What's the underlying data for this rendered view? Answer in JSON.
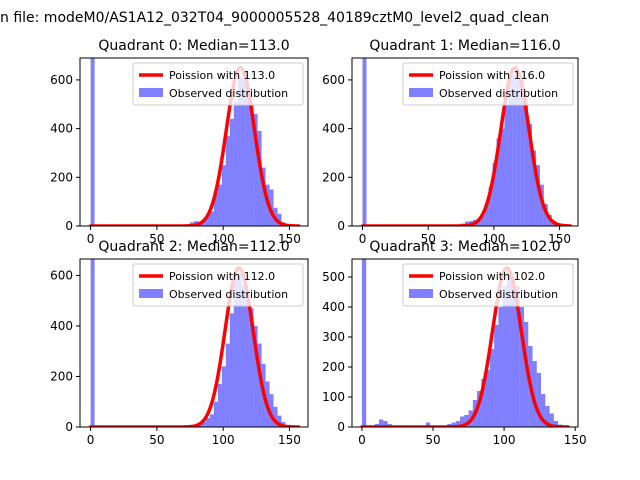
{
  "figure": {
    "suptitle": "n file: modeM0/AS1A12_032T04_9000005528_40189cztM0_level2_quad_clean"
  },
  "chart_data": [
    {
      "type": "bar",
      "title": "Quadrant 0: Median=113.0",
      "xlabel": "",
      "ylabel": "",
      "xlim": [
        -8,
        164
      ],
      "ylim": [
        0,
        690
      ],
      "xticks": [
        0,
        50,
        100,
        150
      ],
      "yticks": [
        0,
        200,
        400,
        600
      ],
      "grid": false,
      "legend": "top-right",
      "fit": {
        "name": "Poission with 113.0",
        "color": "#ff0000",
        "mu": 113.0,
        "peak": 650,
        "x_range": [
          0,
          157
        ]
      },
      "histogram": {
        "name": "Observed distribution",
        "color": "#0000ff",
        "bin_width": 3,
        "bins": [
          [
            0,
            690
          ],
          [
            3,
            5
          ],
          [
            63,
            2
          ],
          [
            66,
            2
          ],
          [
            69,
            3
          ],
          [
            72,
            4
          ],
          [
            75,
            15
          ],
          [
            78,
            20
          ],
          [
            81,
            18
          ],
          [
            84,
            25
          ],
          [
            87,
            45
          ],
          [
            90,
            60
          ],
          [
            93,
            140
          ],
          [
            96,
            170
          ],
          [
            99,
            250
          ],
          [
            102,
            370
          ],
          [
            105,
            440
          ],
          [
            108,
            510
          ],
          [
            111,
            610
          ],
          [
            114,
            610
          ],
          [
            117,
            590
          ],
          [
            120,
            510
          ],
          [
            123,
            460
          ],
          [
            126,
            390
          ],
          [
            129,
            240
          ],
          [
            132,
            170
          ],
          [
            135,
            150
          ],
          [
            138,
            75
          ],
          [
            141,
            50
          ],
          [
            144,
            15
          ],
          [
            147,
            8
          ],
          [
            150,
            4
          ]
        ]
      }
    },
    {
      "type": "bar",
      "title": "Quadrant 1: Median=116.0",
      "xlabel": "",
      "ylabel": "",
      "xlim": [
        -8,
        164
      ],
      "ylim": [
        0,
        690
      ],
      "xticks": [
        0,
        50,
        100,
        150
      ],
      "yticks": [
        0,
        200,
        400,
        600
      ],
      "grid": false,
      "legend": "top-right",
      "fit": {
        "name": "Poission with 116.0",
        "color": "#ff0000",
        "mu": 116.0,
        "peak": 650,
        "x_range": [
          0,
          158
        ]
      },
      "histogram": {
        "name": "Observed distribution",
        "color": "#0000ff",
        "bin_width": 3,
        "bins": [
          [
            0,
            690
          ],
          [
            3,
            5
          ],
          [
            63,
            2
          ],
          [
            66,
            2
          ],
          [
            69,
            3
          ],
          [
            72,
            5
          ],
          [
            75,
            10
          ],
          [
            78,
            18
          ],
          [
            81,
            20
          ],
          [
            84,
            25
          ],
          [
            87,
            30
          ],
          [
            90,
            45
          ],
          [
            93,
            90
          ],
          [
            96,
            160
          ],
          [
            99,
            260
          ],
          [
            102,
            360
          ],
          [
            105,
            400
          ],
          [
            108,
            500
          ],
          [
            111,
            620
          ],
          [
            114,
            620
          ],
          [
            117,
            600
          ],
          [
            120,
            600
          ],
          [
            123,
            520
          ],
          [
            126,
            420
          ],
          [
            129,
            310
          ],
          [
            132,
            250
          ],
          [
            135,
            170
          ],
          [
            138,
            90
          ],
          [
            141,
            45
          ],
          [
            144,
            20
          ],
          [
            147,
            10
          ],
          [
            150,
            5
          ]
        ]
      }
    },
    {
      "type": "bar",
      "title": "Quadrant 2: Median=112.0",
      "xlabel": "",
      "ylabel": "",
      "xlim": [
        -8,
        164
      ],
      "ylim": [
        0,
        665
      ],
      "xticks": [
        0,
        50,
        100,
        150
      ],
      "yticks": [
        0,
        200,
        400,
        600
      ],
      "grid": false,
      "legend": "top-right",
      "fit": {
        "name": "Poission with 112.0",
        "color": "#ff0000",
        "mu": 112.0,
        "peak": 630,
        "x_range": [
          0,
          157
        ]
      },
      "histogram": {
        "name": "Observed distribution",
        "color": "#0000ff",
        "bin_width": 3,
        "bins": [
          [
            0,
            665
          ],
          [
            3,
            5
          ],
          [
            66,
            2
          ],
          [
            72,
            3
          ],
          [
            75,
            8
          ],
          [
            78,
            10
          ],
          [
            81,
            15
          ],
          [
            84,
            20
          ],
          [
            87,
            35
          ],
          [
            90,
            50
          ],
          [
            93,
            100
          ],
          [
            96,
            170
          ],
          [
            99,
            240
          ],
          [
            102,
            330
          ],
          [
            105,
            450
          ],
          [
            108,
            590
          ],
          [
            111,
            610
          ],
          [
            114,
            560
          ],
          [
            117,
            520
          ],
          [
            120,
            470
          ],
          [
            123,
            400
          ],
          [
            126,
            330
          ],
          [
            129,
            250
          ],
          [
            132,
            180
          ],
          [
            135,
            130
          ],
          [
            138,
            80
          ],
          [
            141,
            45
          ],
          [
            144,
            20
          ],
          [
            147,
            8
          ],
          [
            150,
            4
          ]
        ]
      }
    },
    {
      "type": "bar",
      "title": "Quadrant 3: Median=102.0",
      "xlabel": "",
      "ylabel": "",
      "xlim": [
        -7,
        152
      ],
      "ylim": [
        0,
        560
      ],
      "xticks": [
        0,
        50,
        100,
        150
      ],
      "yticks": [
        0,
        100,
        200,
        300,
        400,
        500
      ],
      "grid": false,
      "legend": "top-right",
      "fit": {
        "name": "Poission with 102.0",
        "color": "#ff0000",
        "mu": 102.0,
        "peak": 530,
        "x_range": [
          0,
          145
        ]
      },
      "histogram": {
        "name": "Observed distribution",
        "color": "#0000ff",
        "bin_width": 3,
        "bins": [
          [
            0,
            560
          ],
          [
            3,
            5
          ],
          [
            9,
            10
          ],
          [
            12,
            25
          ],
          [
            15,
            20
          ],
          [
            18,
            10
          ],
          [
            21,
            5
          ],
          [
            27,
            5
          ],
          [
            45,
            15
          ],
          [
            51,
            5
          ],
          [
            57,
            5
          ],
          [
            60,
            10
          ],
          [
            63,
            15
          ],
          [
            66,
            20
          ],
          [
            69,
            35
          ],
          [
            72,
            40
          ],
          [
            75,
            55
          ],
          [
            78,
            90
          ],
          [
            81,
            120
          ],
          [
            84,
            160
          ],
          [
            87,
            190
          ],
          [
            90,
            260
          ],
          [
            93,
            340
          ],
          [
            96,
            400
          ],
          [
            99,
            470
          ],
          [
            102,
            520
          ],
          [
            105,
            500
          ],
          [
            108,
            470
          ],
          [
            111,
            400
          ],
          [
            114,
            350
          ],
          [
            117,
            270
          ],
          [
            120,
            220
          ],
          [
            123,
            180
          ],
          [
            126,
            110
          ],
          [
            129,
            70
          ],
          [
            132,
            45
          ],
          [
            135,
            20
          ],
          [
            138,
            8
          ],
          [
            141,
            3
          ]
        ]
      }
    }
  ]
}
